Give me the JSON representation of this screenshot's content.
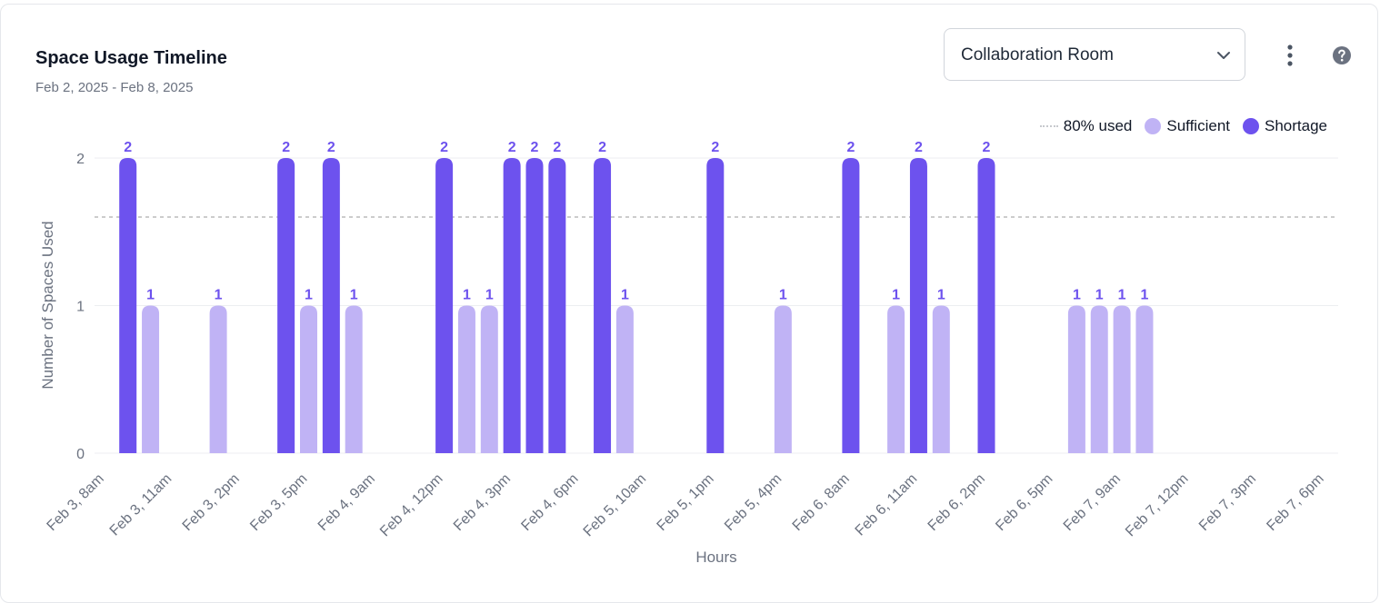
{
  "header": {
    "title": "Space Usage Timeline",
    "date_range": "Feb 2, 2025 - Feb 8, 2025"
  },
  "room_select": {
    "selected": "Collaboration Room"
  },
  "icons": {
    "select_chevron": "chevron-down-icon",
    "menu": "kebab-menu-icon",
    "help": "help-icon"
  },
  "legend": {
    "threshold": "80% used",
    "sufficient": "Sufficient",
    "shortage": "Shortage"
  },
  "colors": {
    "shortage": "#6d52ee",
    "sufficient": "#c0b3f5",
    "threshold": "#cccccc",
    "grid": "#eceef1"
  },
  "chart_data": {
    "type": "bar",
    "xlabel": "Hours",
    "ylabel": "Number of Spaces Used",
    "ylim": [
      0,
      2
    ],
    "yticks": [
      0,
      1,
      2
    ],
    "threshold": 1.6,
    "grid": true,
    "legend_position": "top-right",
    "x_tick_labels": [
      "Feb 3, 8am",
      "Feb 3, 11am",
      "Feb 3, 2pm",
      "Feb 3, 5pm",
      "Feb 4, 9am",
      "Feb 4, 12pm",
      "Feb 4, 3pm",
      "Feb 4, 6pm",
      "Feb 5, 10am",
      "Feb 5, 1pm",
      "Feb 5, 4pm",
      "Feb 6, 8am",
      "Feb 6, 11am",
      "Feb 6, 2pm",
      "Feb 6, 5pm",
      "Feb 7, 9am",
      "Feb 7, 12pm",
      "Feb 7, 3pm",
      "Feb 7, 6pm"
    ],
    "categories": [
      "Feb 3, 8am",
      "Feb 3, 9am",
      "Feb 3, 10am",
      "Feb 3, 11am",
      "Feb 3, 12pm",
      "Feb 3, 1pm",
      "Feb 3, 2pm",
      "Feb 3, 3pm",
      "Feb 3, 4pm",
      "Feb 3, 5pm",
      "Feb 3, 6pm",
      "Feb 4, 8am",
      "Feb 4, 9am",
      "Feb 4, 10am",
      "Feb 4, 11am",
      "Feb 4, 12pm",
      "Feb 4, 1pm",
      "Feb 4, 2pm",
      "Feb 4, 3pm",
      "Feb 4, 4pm",
      "Feb 4, 5pm",
      "Feb 4, 6pm",
      "Feb 5, 8am",
      "Feb 5, 9am",
      "Feb 5, 10am",
      "Feb 5, 11am",
      "Feb 5, 12pm",
      "Feb 5, 1pm",
      "Feb 5, 2pm",
      "Feb 5, 3pm",
      "Feb 5, 4pm",
      "Feb 5, 5pm",
      "Feb 5, 6pm",
      "Feb 6, 8am",
      "Feb 6, 9am",
      "Feb 6, 10am",
      "Feb 6, 11am",
      "Feb 6, 12pm",
      "Feb 6, 1pm",
      "Feb 6, 2pm",
      "Feb 6, 3pm",
      "Feb 6, 4pm",
      "Feb 6, 5pm",
      "Feb 6, 6pm",
      "Feb 7, 8am",
      "Feb 7, 9am",
      "Feb 7, 10am",
      "Feb 7, 11am",
      "Feb 7, 12pm",
      "Feb 7, 1pm",
      "Feb 7, 2pm",
      "Feb 7, 3pm",
      "Feb 7, 4pm",
      "Feb 7, 5pm",
      "Feb 7, 6pm"
    ],
    "values": [
      0,
      0,
      2,
      1,
      0,
      0,
      1,
      0,
      0,
      2,
      1,
      2,
      1,
      0,
      0,
      0,
      2,
      1,
      1,
      2,
      2,
      2,
      0,
      2,
      1,
      0,
      0,
      0,
      2,
      0,
      0,
      1,
      0,
      0,
      2,
      0,
      1,
      2,
      1,
      0,
      2,
      0,
      0,
      0,
      1,
      1,
      1,
      1,
      0,
      0,
      0,
      0,
      0,
      0,
      0
    ],
    "status": [
      "none",
      "none",
      "shortage",
      "sufficient",
      "none",
      "none",
      "sufficient",
      "none",
      "none",
      "shortage",
      "sufficient",
      "shortage",
      "sufficient",
      "none",
      "none",
      "none",
      "shortage",
      "sufficient",
      "sufficient",
      "shortage",
      "shortage",
      "shortage",
      "none",
      "shortage",
      "sufficient",
      "none",
      "none",
      "none",
      "shortage",
      "none",
      "none",
      "sufficient",
      "none",
      "none",
      "shortage",
      "none",
      "sufficient",
      "shortage",
      "sufficient",
      "none",
      "shortage",
      "none",
      "none",
      "none",
      "sufficient",
      "sufficient",
      "sufficient",
      "sufficient",
      "none",
      "none",
      "none",
      "none",
      "none",
      "none",
      "none"
    ]
  }
}
